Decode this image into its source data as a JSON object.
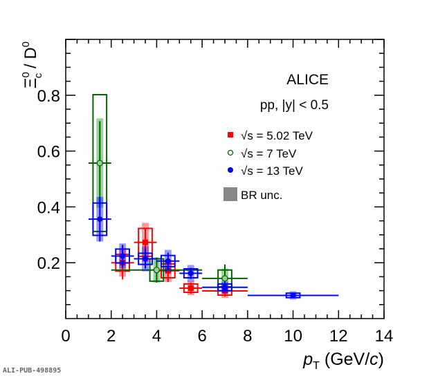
{
  "chart_data": {
    "type": "scatter",
    "title": "",
    "xlabel": {
      "main": "p",
      "sub": "T",
      "rest": " (GeV/",
      "c": "c",
      "close": ")"
    },
    "ylabel": {
      "xi": "Ξ",
      "sup": "0",
      "sub": "c",
      "rest": " / D",
      "dsup": "0"
    },
    "xlim": [
      0,
      14
    ],
    "ylim": [
      0,
      1.0
    ],
    "xticks": [
      "0",
      "2",
      "4",
      "6",
      "8",
      "10",
      "12",
      "14"
    ],
    "xtick_values": [
      0,
      2,
      4,
      6,
      8,
      10,
      12,
      14
    ],
    "yticks": [
      "0.2",
      "0.4",
      "0.6",
      "0.8"
    ],
    "ytick_values": [
      0.2,
      0.4,
      0.6,
      0.8
    ],
    "annotations": {
      "experiment": "ALICE",
      "system": "pp, |y| < 0.5"
    },
    "legend": {
      "placement": "top-right",
      "entries": [
        {
          "label": "√s = 5.02 TeV",
          "color": "#ff0000",
          "marker": "filled-square"
        },
        {
          "label": "√s = 7 TeV",
          "color": "#006400",
          "marker": "open-circle"
        },
        {
          "label": "√s = 13 TeV",
          "color": "#0000ff",
          "marker": "filled-circle"
        },
        {
          "label": "BR unc.",
          "color": "#888888",
          "marker": "box"
        }
      ]
    },
    "series": [
      {
        "name": "√s = 5.02 TeV",
        "color": "#ff0000",
        "band": "rgba(255,0,0,0.4)",
        "marker": "square",
        "points": [
          {
            "x": 2.5,
            "xlo": 2,
            "xhi": 3,
            "y": 0.2,
            "stat": 0.06,
            "syst": 0.03,
            "br": 0.05
          },
          {
            "x": 3.5,
            "xlo": 3,
            "xhi": 4,
            "y": 0.273,
            "stat": 0.05,
            "syst": 0.05,
            "br": 0.07
          },
          {
            "x": 4.5,
            "xlo": 4,
            "xhi": 5,
            "y": 0.171,
            "stat": 0.04,
            "syst": 0.025,
            "br": 0.04
          },
          {
            "x": 5.5,
            "xlo": 5,
            "xhi": 6,
            "y": 0.109,
            "stat": 0.02,
            "syst": 0.015,
            "br": 0.025
          },
          {
            "x": 7.0,
            "xlo": 6,
            "xhi": 8,
            "y": 0.099,
            "stat": 0.02,
            "syst": 0.015,
            "br": 0.025
          }
        ]
      },
      {
        "name": "√s = 7 TeV",
        "color": "#006400",
        "band": "rgba(0,150,0,0.4)",
        "marker": "open-circle",
        "points": [
          {
            "x": 1.5,
            "xlo": 1,
            "xhi": 2,
            "y": 0.557,
            "stat": 0.15,
            "syst": 0.245,
            "br": 0.16
          },
          {
            "x": 4.0,
            "xlo": 2,
            "xhi": 6,
            "y": 0.174,
            "stat": 0.045,
            "syst": 0.04,
            "br": 0.045
          },
          {
            "x": 7.0,
            "xlo": 6,
            "xhi": 8,
            "y": 0.144,
            "stat": 0.05,
            "syst": 0.03,
            "br": 0.035
          }
        ]
      },
      {
        "name": "√s = 13 TeV",
        "color": "#0000ff",
        "band": "rgba(0,0,255,0.4)",
        "marker": "circle",
        "points": [
          {
            "x": 1.5,
            "xlo": 1,
            "xhi": 2,
            "y": 0.356,
            "stat": 0.08,
            "syst": 0.058,
            "br": 0.08
          },
          {
            "x": 2.5,
            "xlo": 2,
            "xhi": 3,
            "y": 0.224,
            "stat": 0.04,
            "syst": 0.025,
            "br": 0.045
          },
          {
            "x": 3.5,
            "xlo": 3,
            "xhi": 4,
            "y": 0.214,
            "stat": 0.035,
            "syst": 0.02,
            "br": 0.045
          },
          {
            "x": 4.5,
            "xlo": 4,
            "xhi": 5,
            "y": 0.206,
            "stat": 0.03,
            "syst": 0.02,
            "br": 0.04
          },
          {
            "x": 5.5,
            "xlo": 5,
            "xhi": 6,
            "y": 0.162,
            "stat": 0.02,
            "syst": 0.016,
            "br": 0.03
          },
          {
            "x": 7.0,
            "xlo": 6,
            "xhi": 8,
            "y": 0.112,
            "stat": 0.02,
            "syst": 0.012,
            "br": 0.02
          },
          {
            "x": 10.0,
            "xlo": 8,
            "xhi": 12,
            "y": 0.083,
            "stat": 0.01,
            "syst": 0.008,
            "br": 0.015
          }
        ]
      }
    ]
  },
  "watermark": "ALI-PUB-498895"
}
